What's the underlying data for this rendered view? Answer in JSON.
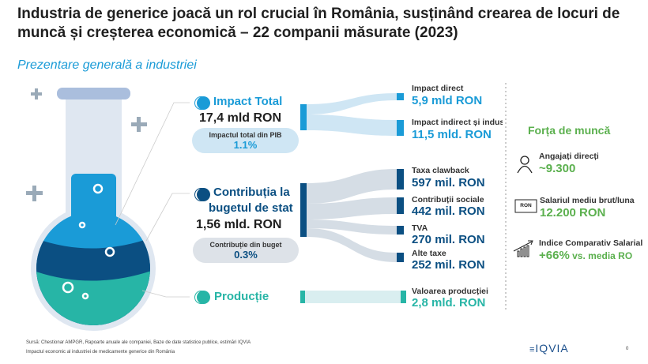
{
  "title": "Industria de generice joacă un rol crucial în România, susținând crearea de locuri de muncă și creșterea economică – 22 companii măsurate (2023)",
  "subtitle": "Prezentare generală a industriei",
  "colors": {
    "light_blue": "#1a9bd7",
    "dark_blue": "#0b4f82",
    "teal": "#27b5a6",
    "green": "#5bb04e",
    "gray_flow": "#d5dde5",
    "light_flow": "#cfe6f4"
  },
  "impact": {
    "label": "Impact Total",
    "value": "17,4 mld RON",
    "pill_label": "Impactul total din PIB",
    "pill_value": "1.1%",
    "targets": [
      {
        "label": "Impact direct",
        "value": "5,9 mld RON"
      },
      {
        "label": "Impact indirect și indus",
        "value": "11,5 mld. RON"
      }
    ]
  },
  "budget": {
    "label_line1": "Contribuția la",
    "label_line2": "bugetul de stat",
    "value": "1,56 mld. RON",
    "pill_label": "Contribuție din buget",
    "pill_value": "0.3%",
    "targets": [
      {
        "label": "Taxa clawback",
        "value": "597 mil. RON"
      },
      {
        "label": "Contribuții sociale",
        "value": "442 mil. RON"
      },
      {
        "label": "TVA",
        "value": "270 mil. RON"
      },
      {
        "label": "Alte taxe",
        "value": "252 mil. RON"
      }
    ]
  },
  "production": {
    "label": "Producție",
    "targets": [
      {
        "label": "Valoarea producției",
        "value": "2,8 mld. RON"
      }
    ]
  },
  "workforce": {
    "title": "Forța de muncă",
    "items": [
      {
        "icon": "person-icon",
        "label": "Angajați direcți",
        "value": "~9.300"
      },
      {
        "icon": "ron-banknote-icon",
        "icon_text": "RON",
        "label": "Salariul mediu brut/luna",
        "value": "12.200 RON"
      },
      {
        "icon": "growth-chart-icon",
        "label": "Indice Comparativ Salarial",
        "value": "+66%",
        "value_suffix": " vs. media RO"
      }
    ]
  },
  "footer": {
    "source": "Sursă: Chestionar AMPGR, Rapoarte anuale ale companiei, Baze de date statistice publice, estimări IQVIA",
    "subtitle": "Impactul economic al industriei de medicamente generice din România",
    "logo": "IQVIA",
    "page": "0"
  }
}
